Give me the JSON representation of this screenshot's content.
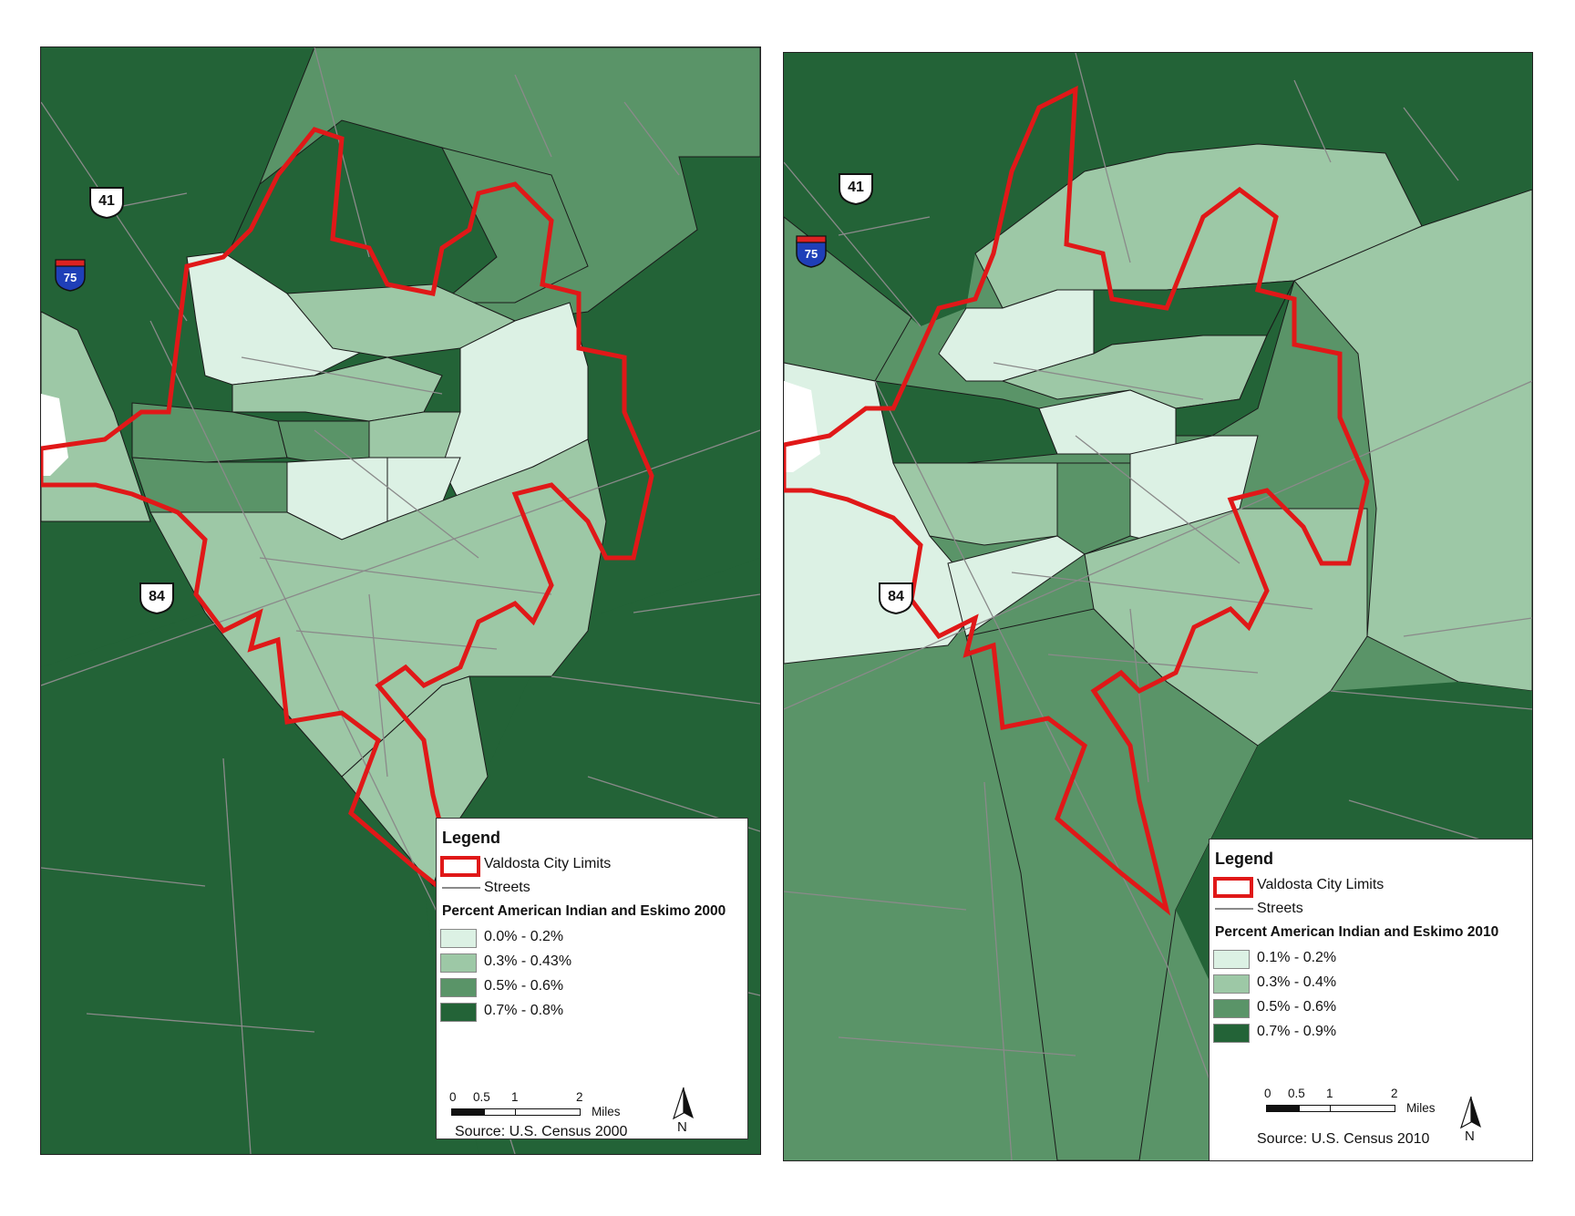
{
  "colors": {
    "class1": "#dcf1e4",
    "class2": "#9dc8a6",
    "class3": "#5a9468",
    "class4": "#236337",
    "city_limits": "#e01818",
    "streets": "#8a8a8a",
    "tract_lines": "#1a1a1a"
  },
  "maps": [
    {
      "legend": {
        "title": "Legend",
        "city_limits_label": "Valdosta City Limits",
        "streets_label": "Streets",
        "classes_title": "Percent American Indian and Eskimo 2000",
        "classes": [
          {
            "label": "0.0% - 0.2%",
            "color": "#dcf1e4"
          },
          {
            "label": "0.3% - 0.43%",
            "color": "#9dc8a6"
          },
          {
            "label": "0.5% - 0.6%",
            "color": "#5a9468"
          },
          {
            "label": "0.7% - 0.8%",
            "color": "#236337"
          }
        ]
      },
      "scale": {
        "ticks": [
          "0",
          "0.5",
          "1",
          "2"
        ],
        "unit": "Miles"
      },
      "north_label": "N",
      "source": "Source: U.S. Census 2000",
      "shields": {
        "us41": "41",
        "us84": "84",
        "i75": "75"
      }
    },
    {
      "legend": {
        "title": "Legend",
        "city_limits_label": "Valdosta City Limits",
        "streets_label": "Streets",
        "classes_title": "Percent American Indian and Eskimo 2010",
        "classes": [
          {
            "label": "0.1% - 0.2%",
            "color": "#dcf1e4"
          },
          {
            "label": "0.3% - 0.4%",
            "color": "#9dc8a6"
          },
          {
            "label": "0.5% - 0.6%",
            "color": "#5a9468"
          },
          {
            "label": "0.7% - 0.9%",
            "color": "#236337"
          }
        ]
      },
      "scale": {
        "ticks": [
          "0",
          "0.5",
          "1",
          "2"
        ],
        "unit": "Miles"
      },
      "north_label": "N",
      "source": "Source: U.S. Census 2010",
      "shields": {
        "us41": "41",
        "us84": "84",
        "i75": "75"
      }
    }
  ]
}
